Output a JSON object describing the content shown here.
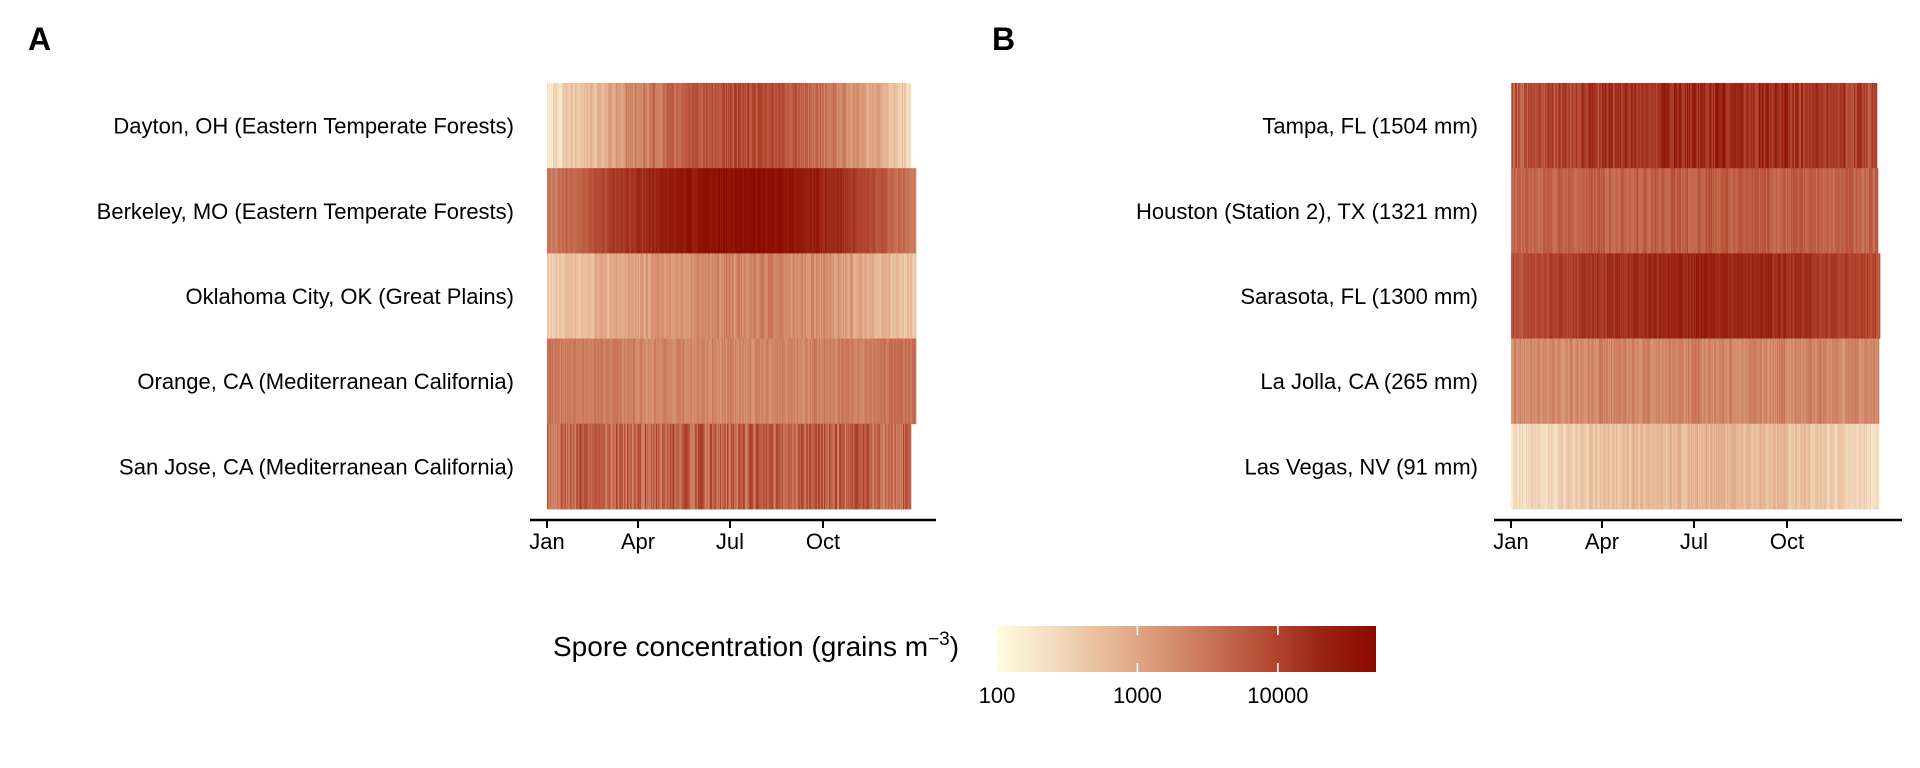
{
  "colors": {
    "scale": [
      "#fffbe0",
      "#f3dcc0",
      "#e8bb9a",
      "#d89776",
      "#c77055",
      "#b44a34",
      "#9a2414",
      "#8b0a00"
    ],
    "axis": "#000000",
    "text": "#000000"
  },
  "chart_data": [
    {
      "type": "heatmap",
      "panel_label": "A",
      "rows": [
        "Dayton, OH (Eastern Temperate Forests)",
        "Berkeley, MO (Eastern Temperate Forests)",
        "Oklahoma City, OK (Great Plains)",
        "Orange, CA (Mediterranean California)",
        "San Jose, CA (Mediterranean California)"
      ],
      "x_ticks": [
        "Jan",
        "Apr",
        "Jul",
        "Oct"
      ],
      "row_profiles": [
        {
          "start": 180,
          "peak": 8000,
          "end": 250,
          "noise": 0.25,
          "last_day": 360
        },
        {
          "start": 2500,
          "peak": 45000,
          "end": 2500,
          "noise": 0.15,
          "last_day": 365
        },
        {
          "start": 350,
          "peak": 2200,
          "end": 450,
          "noise": 0.22,
          "last_day": 365
        },
        {
          "start": 3000,
          "peak": 2000,
          "end": 3500,
          "noise": 0.18,
          "last_day": 365
        },
        {
          "start": 4500,
          "peak": 5000,
          "end": 4500,
          "noise": 0.45,
          "last_day": 360
        }
      ]
    },
    {
      "type": "heatmap",
      "panel_label": "B",
      "rows": [
        "Tampa, FL (1504 mm)",
        "Houston (Station 2), TX (1321 mm)",
        "Sarasota, FL (1300 mm)",
        "La Jolla, CA (265 mm)",
        "Las Vegas, NV (91 mm)"
      ],
      "x_ticks": [
        "Jan",
        "Apr",
        "Jul",
        "Oct"
      ],
      "row_profiles": [
        {
          "start": 6000,
          "peak": 20000,
          "end": 8000,
          "noise": 0.35,
          "last_day": 362
        },
        {
          "start": 4000,
          "peak": 5500,
          "end": 4500,
          "noise": 0.22,
          "last_day": 363
        },
        {
          "start": 7000,
          "peak": 22000,
          "end": 8000,
          "noise": 0.18,
          "last_day": 365
        },
        {
          "start": 1800,
          "peak": 2200,
          "end": 2000,
          "noise": 0.2,
          "last_day": 364
        },
        {
          "start": 220,
          "peak": 700,
          "end": 230,
          "noise": 0.2,
          "last_day": 364
        }
      ]
    }
  ],
  "legend": {
    "title": "Spore concentration (grains m",
    "title_superscript": "−3",
    "title_close": ")",
    "min": 100,
    "max": 50000,
    "ticks": [
      {
        "value": 100,
        "label": "100"
      },
      {
        "value": 1000,
        "label": "1000"
      },
      {
        "value": 10000,
        "label": "10000"
      }
    ]
  }
}
